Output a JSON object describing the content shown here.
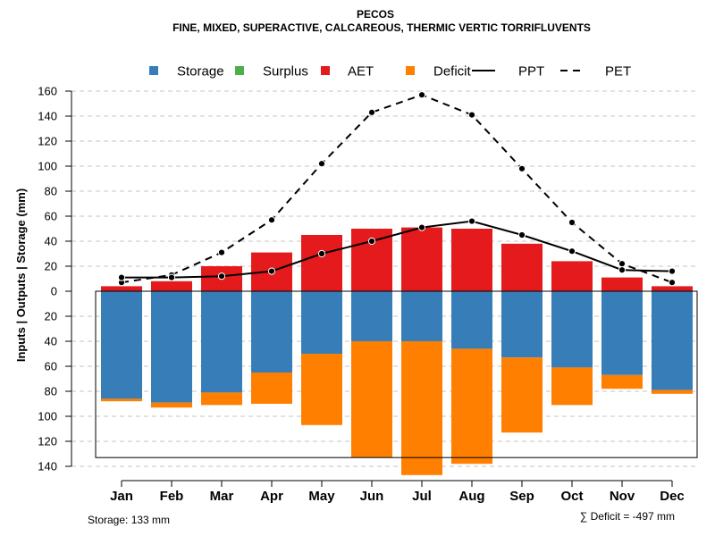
{
  "chart_data": {
    "type": "bar",
    "title": "PECOS",
    "subtitle": "FINE, MIXED, SUPERACTIVE, CALCAREOUS, THERMIC VERTIC TORRIFLUVENTS",
    "ylabel": "Inputs | Outputs | Storage    (mm)",
    "categories": [
      "Jan",
      "Feb",
      "Mar",
      "Apr",
      "May",
      "Jun",
      "Jul",
      "Aug",
      "Sep",
      "Oct",
      "Nov",
      "Dec"
    ],
    "ylim": [
      -140,
      160
    ],
    "yticks": [
      160,
      140,
      120,
      100,
      80,
      60,
      40,
      20,
      0,
      -20,
      -40,
      -60,
      -80,
      -100,
      -120,
      -140
    ],
    "ytick_labels": [
      "160",
      "140",
      "120",
      "100",
      "80",
      "60",
      "40",
      "20",
      "0",
      "20",
      "40",
      "60",
      "80",
      "100",
      "120",
      "140"
    ],
    "legend": [
      {
        "key": "storage",
        "label": "Storage",
        "kind": "box",
        "color": "#377EB8"
      },
      {
        "key": "surplus",
        "label": "Surplus",
        "kind": "box",
        "color": "#4DAF4A"
      },
      {
        "key": "aet",
        "label": "AET",
        "kind": "box",
        "color": "#E41A1C"
      },
      {
        "key": "deficit",
        "label": "Deficit",
        "kind": "box",
        "color": "#FF7F00"
      },
      {
        "key": "ppt",
        "label": "PPT",
        "kind": "solid",
        "color": "#000000"
      },
      {
        "key": "pet",
        "label": "PET",
        "kind": "dashed",
        "color": "#000000"
      }
    ],
    "series": {
      "aet": [
        4,
        8,
        20,
        31,
        45,
        50,
        51,
        50,
        38,
        24,
        11,
        4
      ],
      "storage": [
        86,
        89,
        81,
        65,
        50,
        40,
        40,
        46,
        53,
        61,
        67,
        79
      ],
      "deficit": [
        2,
        4,
        10,
        25,
        57,
        93,
        107,
        92,
        60,
        30,
        11,
        3
      ],
      "surplus": [
        0,
        0,
        0,
        0,
        0,
        0,
        0,
        0,
        0,
        0,
        0,
        0
      ],
      "ppt": [
        11,
        11,
        12,
        16,
        30,
        40,
        51,
        56,
        45,
        32,
        17,
        16
      ],
      "pet": [
        7,
        13,
        31,
        57,
        102,
        143,
        157,
        141,
        98,
        55,
        22,
        7
      ]
    },
    "storage_capacity": 133,
    "footer_left": "Storage: 133 mm",
    "footer_right": "∑ Deficit = -497 mm"
  }
}
